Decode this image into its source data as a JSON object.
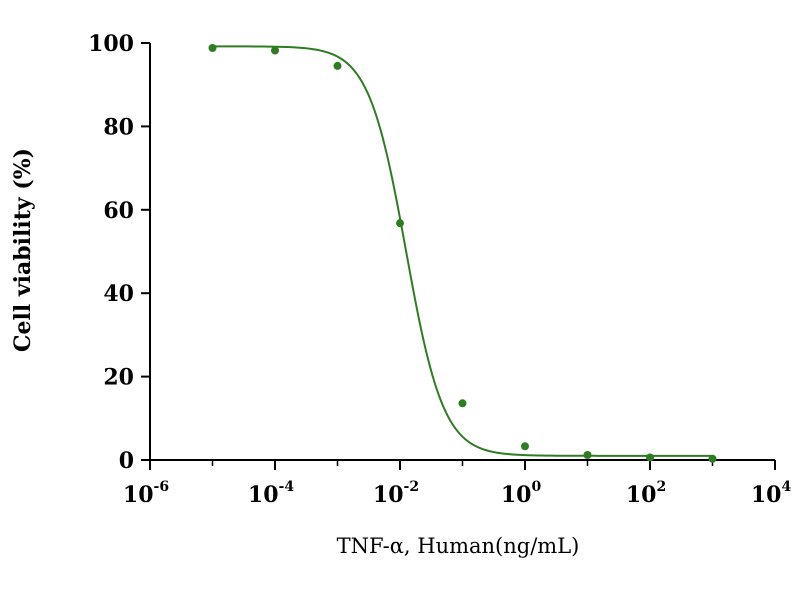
{
  "chart_data": {
    "type": "scatter",
    "title": "",
    "xlabel": "TNF-α, Human(ng/mL)",
    "ylabel": "Cell viability (%)",
    "x_scale": "log10",
    "xlim": [
      1e-06,
      10000
    ],
    "ylim": [
      0,
      100
    ],
    "x_ticks": [
      {
        "base": "10",
        "exp": "-6"
      },
      {
        "base": "10",
        "exp": "-4"
      },
      {
        "base": "10",
        "exp": "-2"
      },
      {
        "base": "10",
        "exp": "0"
      },
      {
        "base": "10",
        "exp": "2"
      },
      {
        "base": "10",
        "exp": "4"
      }
    ],
    "y_ticks": [
      "0",
      "20",
      "40",
      "60",
      "80",
      "100"
    ],
    "grid": false,
    "legend": false,
    "series_color": "#2e7d22",
    "series": [
      {
        "x": [
          1e-05,
          0.0001,
          0.001,
          0.01,
          0.1,
          1,
          10,
          100,
          1000
        ],
        "y": [
          98.8,
          98.2,
          94.5,
          56.8,
          13.6,
          3.3,
          1.2,
          0.6,
          0.3
        ]
      }
    ],
    "fit": {
      "model": "4PL",
      "top": 99.2,
      "bottom": 1.0,
      "ic50": 0.0125,
      "hill": 1.45
    }
  }
}
